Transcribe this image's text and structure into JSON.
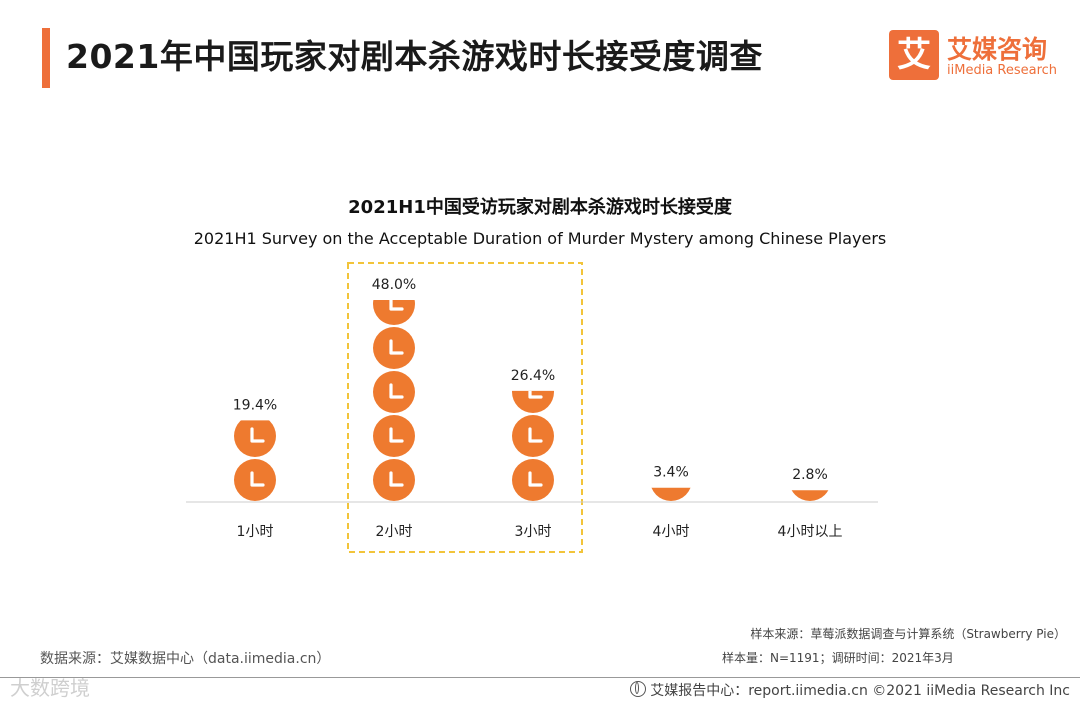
{
  "header": {
    "title": "2021年中国玩家对剧本杀游戏时长接受度调查",
    "logo_mark": "艾",
    "logo_cn": "艾媒咨询",
    "logo_en": "iiMedia Research"
  },
  "chart_data": {
    "type": "bar",
    "title": "2021H1中国受访玩家对剧本杀游戏时长接受度",
    "subtitle": "2021H1 Survey on the Acceptable Duration of Murder Mystery among Chinese Players",
    "categories": [
      "1小时",
      "2小时",
      "3小时",
      "4小时",
      "4小时以上"
    ],
    "values": [
      19.4,
      48.0,
      26.4,
      3.4,
      2.8
    ],
    "value_labels": [
      "19.4%",
      "48.0%",
      "26.4%",
      "3.4%",
      "2.8%"
    ],
    "unit": "%",
    "highlight_categories": [
      "2小时",
      "3小时"
    ],
    "ylim": [
      0,
      48.0
    ],
    "grid": false,
    "accent_color": "#ee7a2f",
    "highlight_color": "#f2c43a"
  },
  "sources": {
    "data_source": "数据来源：艾媒数据中心（data.iimedia.cn）",
    "sample_source": "样本来源：草莓派数据调查与计算系统（Strawberry Pie）",
    "sample_size": "样本量：N=1191；调研时间：2021年3月"
  },
  "footer": {
    "text": "艾媒报告中心：report.iimedia.cn  ©2021  iiMedia Research  Inc",
    "watermark": "大数跨境"
  }
}
